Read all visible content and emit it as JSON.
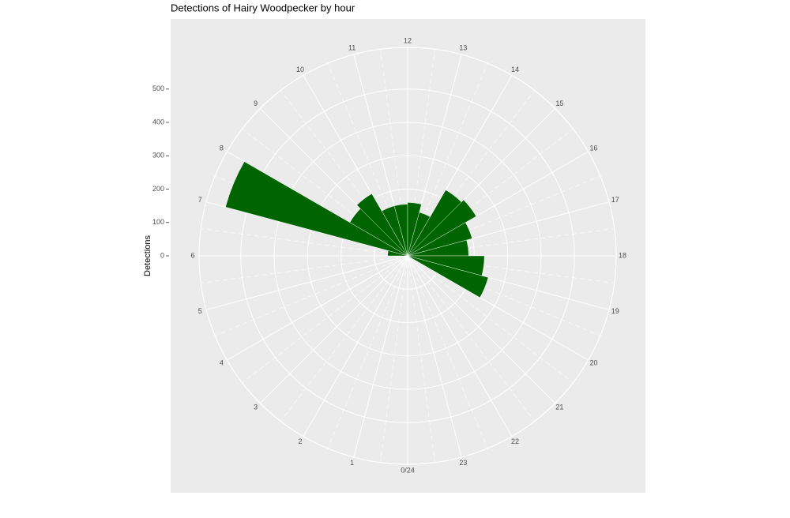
{
  "chart_data": {
    "type": "polar_bar",
    "title": "Detections of Hairy Woodpecker by hour",
    "y_label": "Detections",
    "x": [
      0,
      1,
      2,
      3,
      4,
      5,
      6,
      7,
      8,
      9,
      10,
      11,
      12,
      13,
      14,
      15,
      16,
      17,
      18,
      19,
      20,
      21,
      22,
      23
    ],
    "values": [
      0,
      0,
      0,
      0,
      0,
      0,
      60,
      565,
      200,
      215,
      155,
      155,
      160,
      135,
      228,
      237,
      200,
      183,
      230,
      250,
      0,
      0,
      0,
      0
    ],
    "color": "#006400",
    "xlim": [
      0,
      24
    ],
    "xticks": [
      {
        "value": 0,
        "label": "0/24"
      },
      1,
      2,
      3,
      4,
      5,
      6,
      7,
      8,
      9,
      10,
      11,
      12,
      13,
      14,
      15,
      16,
      17,
      18,
      19,
      20,
      21,
      22,
      23
    ],
    "ylim": [
      0,
      625
    ],
    "yticks": [
      0,
      100,
      200,
      300,
      400,
      500
    ],
    "grid": true
  }
}
